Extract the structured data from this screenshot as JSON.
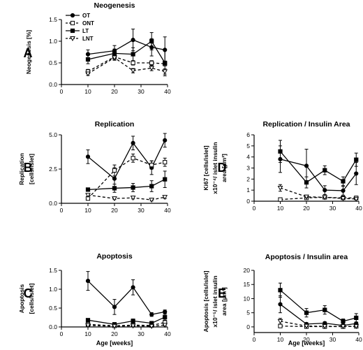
{
  "chart_data": [
    {
      "panel": "A",
      "type": "line",
      "title": "Neogenesis",
      "xlabel": "",
      "ylabel": [
        "Neogenesis [%]"
      ],
      "xlim": [
        0,
        40
      ],
      "xticks": [
        0,
        10,
        20,
        30,
        40
      ],
      "ylim": [
        0,
        1.5
      ],
      "yticks": [
        "0.0",
        "0.5",
        "1.0",
        "1.5"
      ],
      "legend_position": "top-left",
      "series": [
        {
          "name": "OT",
          "marker": "filled-circle",
          "dash": false,
          "x": [
            10,
            20,
            27,
            34,
            39
          ],
          "y": [
            0.7,
            0.78,
            1.03,
            0.86,
            0.8
          ],
          "err": [
            0.1,
            0.12,
            0.25,
            0.2,
            0.3
          ]
        },
        {
          "name": "ONT",
          "marker": "open-square",
          "dash": true,
          "x": [
            10,
            20,
            27,
            34,
            39
          ],
          "y": [
            0.3,
            0.64,
            0.5,
            0.5,
            0.48
          ],
          "err": [
            0.05,
            0.06,
            0.05,
            0.05,
            0.05
          ]
        },
        {
          "name": "LT",
          "marker": "filled-square",
          "dash": false,
          "x": [
            10,
            20,
            27,
            34,
            39
          ],
          "y": [
            0.58,
            0.72,
            0.7,
            1.0,
            0.5
          ],
          "err": [
            0.1,
            0.1,
            0.15,
            0.2,
            0.3
          ]
        },
        {
          "name": "LNT",
          "marker": "open-triangle",
          "dash": true,
          "x": [
            10,
            20,
            27,
            34,
            39
          ],
          "y": [
            0.25,
            0.62,
            0.32,
            0.38,
            0.3
          ],
          "err": [
            0.04,
            0.06,
            0.05,
            0.06,
            0.06
          ]
        }
      ]
    },
    {
      "panel": "B",
      "type": "line",
      "title": "Replication",
      "xlabel": "",
      "ylabel": [
        "Replication",
        "[cells/islet]"
      ],
      "xlim": [
        0,
        40
      ],
      "xticks": [
        0,
        10,
        20,
        30,
        40
      ],
      "ylim": [
        0,
        5
      ],
      "yticks": [
        "0.0",
        "2.5",
        "5.0"
      ],
      "series": [
        {
          "marker": "filled-circle",
          "dash": false,
          "x": [
            10,
            20,
            27,
            34,
            39
          ],
          "y": [
            3.4,
            1.8,
            4.4,
            2.6,
            4.6
          ],
          "err": [
            0.5,
            0.8,
            0.5,
            0.5,
            0.5
          ]
        },
        {
          "marker": "open-square",
          "dash": true,
          "x": [
            10,
            20,
            27,
            34,
            39
          ],
          "y": [
            0.35,
            2.4,
            3.3,
            2.8,
            3.0
          ],
          "err": [
            0.1,
            0.4,
            0.3,
            0.3,
            0.3
          ]
        },
        {
          "marker": "filled-square",
          "dash": false,
          "x": [
            10,
            20,
            27,
            34,
            39
          ],
          "y": [
            1.0,
            1.1,
            1.15,
            1.25,
            1.75
          ],
          "err": [
            0.1,
            0.3,
            0.3,
            0.4,
            0.6
          ]
        },
        {
          "marker": "open-triangle",
          "dash": true,
          "x": [
            10,
            20,
            27,
            34,
            39
          ],
          "y": [
            0.6,
            0.35,
            0.4,
            0.25,
            0.45
          ],
          "err": [
            0.1,
            0.08,
            0.08,
            0.08,
            0.1
          ]
        }
      ]
    },
    {
      "panel": "C",
      "type": "line",
      "title": "Apoptosis",
      "xlabel": "Age [weeks]",
      "ylabel": [
        "Apoptosis",
        "[cells/islet]"
      ],
      "xlim": [
        0,
        40
      ],
      "xticks": [
        0,
        10,
        20,
        30,
        40
      ],
      "ylim": [
        0,
        1.5
      ],
      "yticks": [
        "0.0",
        "0.5",
        "1.0",
        "1.5"
      ],
      "series": [
        {
          "marker": "filled-circle",
          "dash": false,
          "x": [
            10,
            20,
            27,
            34,
            39
          ],
          "y": [
            1.22,
            0.53,
            1.05,
            0.33,
            0.4
          ],
          "err": [
            0.25,
            0.2,
            0.2,
            0.05,
            0.05
          ]
        },
        {
          "marker": "open-square",
          "dash": true,
          "x": [
            10,
            20,
            27,
            34,
            39
          ],
          "y": [
            0.07,
            0.03,
            0.05,
            0.04,
            0.12
          ],
          "err": [
            0.03,
            0.02,
            0.02,
            0.02,
            0.06
          ]
        },
        {
          "marker": "filled-square",
          "dash": false,
          "x": [
            10,
            20,
            27,
            34,
            39
          ],
          "y": [
            0.18,
            0.07,
            0.16,
            0.1,
            0.26
          ],
          "err": [
            0.03,
            0.03,
            0.05,
            0.03,
            0.08
          ]
        },
        {
          "marker": "open-triangle",
          "dash": true,
          "x": [
            10,
            20,
            27,
            34,
            39
          ],
          "y": [
            0.04,
            0.02,
            0.03,
            0.02,
            0.05
          ],
          "err": [
            0.02,
            0.01,
            0.01,
            0.01,
            0.02
          ]
        }
      ]
    },
    {
      "panel": "D",
      "type": "line",
      "title": "Replication / Insulin Area",
      "xlabel": "",
      "ylabel": [
        "Ki67 [cells/islet]",
        "x10⁻⁴/ islet insulin",
        "area [µm²]"
      ],
      "xlim": [
        0,
        40
      ],
      "xticks": [
        0,
        10,
        20,
        30,
        40
      ],
      "ylim": [
        0,
        6
      ],
      "yticks": [
        "0",
        "1",
        "2",
        "3",
        "4",
        "5",
        "6"
      ],
      "series": [
        {
          "marker": "filled-circle",
          "dash": false,
          "x": [
            10,
            20,
            27,
            34,
            39
          ],
          "y": [
            3.8,
            3.2,
            1.0,
            0.95,
            2.5
          ],
          "err": [
            1.2,
            1.5,
            0.4,
            0.4,
            1.0
          ]
        },
        {
          "marker": "open-square",
          "dash": true,
          "x": [
            10,
            20,
            27,
            34,
            39
          ],
          "y": [
            0.15,
            0.3,
            0.35,
            0.3,
            0.3
          ],
          "err": [
            0.05,
            0.05,
            0.05,
            0.05,
            0.05
          ]
        },
        {
          "marker": "filled-square",
          "dash": false,
          "x": [
            10,
            20,
            27,
            34,
            39
          ],
          "y": [
            4.5,
            1.7,
            2.8,
            1.8,
            3.75
          ],
          "err": [
            1.0,
            0.5,
            0.4,
            0.4,
            0.6
          ]
        },
        {
          "marker": "open-triangle",
          "dash": true,
          "x": [
            10,
            20,
            27,
            34,
            39
          ],
          "y": [
            1.2,
            0.4,
            0.35,
            0.25,
            0.2
          ],
          "err": [
            0.3,
            0.1,
            0.05,
            0.05,
            0.05
          ]
        }
      ]
    },
    {
      "panel": "E",
      "type": "line",
      "title": "Apoptosis / Insulin area",
      "xlabel": "Age [weeks]",
      "ylabel": [
        "Apoptosis [cells/islet]",
        "x10⁻⁵/ islet insulin",
        "area [µm²]"
      ],
      "xlim": [
        0,
        40
      ],
      "xticks": [
        0,
        10,
        20,
        30,
        40
      ],
      "ylim": [
        -2,
        20
      ],
      "yticks": [
        "0",
        "5",
        "10",
        "15",
        "20"
      ],
      "series": [
        {
          "marker": "filled-circle",
          "dash": false,
          "x": [
            10,
            20,
            27,
            34,
            39
          ],
          "y": [
            8,
            1,
            1.3,
            0.5,
            1.2
          ],
          "err": [
            3,
            0.5,
            0.5,
            0.3,
            0.5
          ]
        },
        {
          "marker": "open-square",
          "dash": true,
          "x": [
            10,
            20,
            27,
            34,
            39
          ],
          "y": [
            0.3,
            0.1,
            0.1,
            0.1,
            0.2
          ],
          "err": [
            0.2,
            0.1,
            0.1,
            0.1,
            0.1
          ]
        },
        {
          "marker": "filled-square",
          "dash": false,
          "x": [
            10,
            20,
            27,
            34,
            39
          ],
          "y": [
            13,
            5,
            6,
            2,
            3.2
          ],
          "err": [
            2.5,
            1.5,
            1.5,
            0.8,
            1.5
          ]
        },
        {
          "marker": "open-triangle",
          "dash": true,
          "x": [
            10,
            20,
            27,
            34,
            39
          ],
          "y": [
            2,
            0.3,
            0.2,
            0.2,
            0.2
          ],
          "err": [
            1,
            0.2,
            0.1,
            0.1,
            0.1
          ]
        }
      ]
    }
  ]
}
